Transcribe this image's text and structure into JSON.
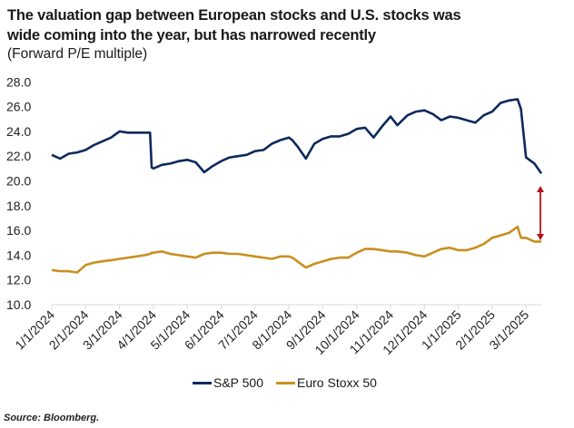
{
  "title_line1": "The valuation gap between European stocks and U.S. stocks was",
  "title_line2": "wide coming into the year, but has narrowed recently",
  "subtitle": "(Forward P/E multiple)",
  "source": "Source: Bloomberg.",
  "colors": {
    "sp500": "#0d2a5c",
    "stoxx": "#c98f1f",
    "arrow": "#b3141c",
    "axis": "#d9d9d9"
  },
  "chart_data": {
    "type": "line",
    "title": "The valuation gap between European stocks and U.S. stocks was wide coming into the year, but has narrowed recently",
    "subtitle": "(Forward P/E multiple)",
    "xlabel": "",
    "ylabel": "",
    "ylim": [
      10,
      28
    ],
    "yticks": [
      "10.0",
      "12.0",
      "14.0",
      "16.0",
      "18.0",
      "20.0",
      "22.0",
      "24.0",
      "26.0",
      "28.0"
    ],
    "xticks": [
      "1/1/2024",
      "2/1/2024",
      "3/1/2024",
      "4/1/2024",
      "5/1/2024",
      "6/1/2024",
      "7/1/2024",
      "8/1/2024",
      "9/1/2024",
      "10/1/2024",
      "11/1/2024",
      "12/1/2024",
      "1/1/2025",
      "2/1/2025",
      "3/1/2025"
    ],
    "x_months": [
      0,
      0.25,
      0.5,
      0.75,
      1.0,
      1.25,
      1.5,
      1.75,
      2.0,
      2.25,
      2.5,
      2.75,
      2.9,
      2.95,
      3.0,
      3.25,
      3.5,
      3.75,
      4.0,
      4.25,
      4.5,
      4.75,
      5.0,
      5.25,
      5.5,
      5.75,
      6.0,
      6.25,
      6.5,
      6.75,
      7.0,
      7.1,
      7.25,
      7.5,
      7.75,
      8.0,
      8.25,
      8.5,
      8.75,
      9.0,
      9.25,
      9.5,
      9.75,
      10.0,
      10.2,
      10.5,
      10.75,
      11.0,
      11.25,
      11.5,
      11.75,
      12.0,
      12.25,
      12.5,
      12.75,
      13.0,
      13.25,
      13.5,
      13.75,
      13.85,
      14.0,
      14.25,
      14.45
    ],
    "series": [
      {
        "name": "S&P 500",
        "color": "#0d2a5c",
        "values": [
          22.1,
          21.8,
          22.2,
          22.3,
          22.5,
          22.9,
          23.2,
          23.5,
          24.0,
          23.9,
          23.9,
          23.9,
          23.9,
          21.1,
          21.0,
          21.3,
          21.4,
          21.6,
          21.7,
          21.5,
          20.7,
          21.2,
          21.6,
          21.9,
          22.0,
          22.1,
          22.4,
          22.5,
          23.0,
          23.3,
          23.5,
          23.3,
          22.8,
          21.8,
          23.0,
          23.4,
          23.6,
          23.6,
          23.8,
          24.2,
          24.3,
          23.5,
          24.4,
          25.2,
          24.5,
          25.3,
          25.6,
          25.7,
          25.4,
          24.9,
          25.2,
          25.1,
          24.9,
          24.7,
          25.3,
          25.6,
          26.3,
          26.5,
          26.6,
          25.8,
          21.9,
          21.4,
          20.6
        ]
      },
      {
        "name": "Euro Stoxx 50",
        "color": "#c98f1f",
        "values": [
          12.8,
          12.7,
          12.7,
          12.6,
          13.2,
          13.4,
          13.5,
          13.6,
          13.7,
          13.8,
          13.9,
          14.0,
          14.1,
          14.2,
          14.2,
          14.3,
          14.1,
          14.0,
          13.9,
          13.8,
          14.1,
          14.2,
          14.2,
          14.1,
          14.1,
          14.0,
          13.9,
          13.8,
          13.7,
          13.9,
          13.9,
          13.8,
          13.5,
          13.0,
          13.3,
          13.5,
          13.7,
          13.8,
          13.8,
          14.2,
          14.5,
          14.5,
          14.4,
          14.3,
          14.3,
          14.2,
          14.0,
          13.9,
          14.2,
          14.5,
          14.6,
          14.4,
          14.4,
          14.6,
          14.9,
          15.4,
          15.6,
          15.8,
          16.3,
          15.4,
          15.4,
          15.1,
          15.1
        ]
      }
    ],
    "annotation": {
      "type": "double-arrow",
      "meaning": "valuation gap between S&P 500 and Euro Stoxx 50",
      "from": 15.2,
      "to": 19.6
    },
    "legend": {
      "position": "bottom",
      "entries": [
        "S&P 500",
        "Euro Stoxx 50"
      ]
    },
    "grid": false
  }
}
